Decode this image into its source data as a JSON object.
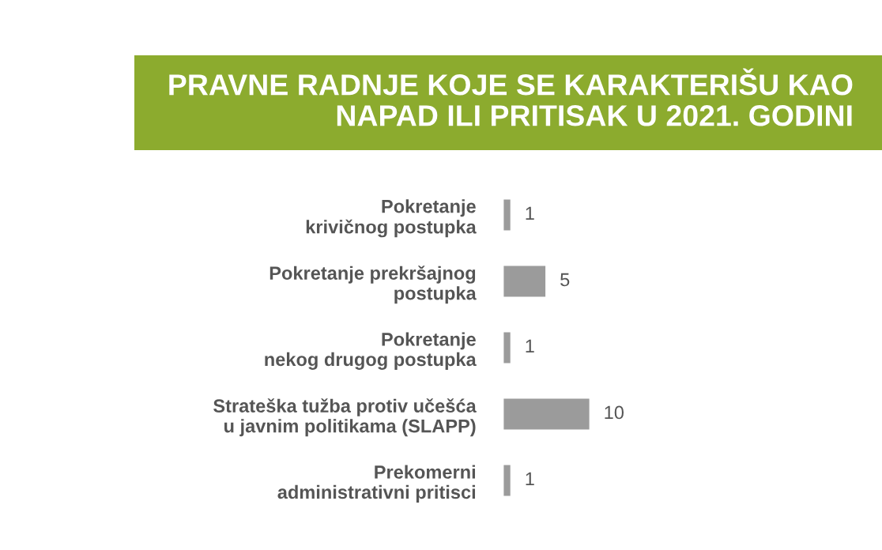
{
  "chart_data": {
    "type": "bar",
    "orientation": "horizontal",
    "title": "PRAVNE RADNJE KOJE SE KARAKTERIŠU KAO\nNAPAD ILI PRITISAK U 2021. GODINI",
    "categories": [
      "Pokretanje\nkrivičnog postupka",
      "Pokretanje prekršajnog\npostupka",
      "Pokretanje\nnekog drugog postupka",
      "Strateška tužba protiv učešća\nu javnim politikama (SLAPP)",
      "Prekomerni\nadministrativni pritisci"
    ],
    "values": [
      1,
      5,
      1,
      10,
      1
    ],
    "color": "#9b9b9b",
    "data_labels": true
  }
}
